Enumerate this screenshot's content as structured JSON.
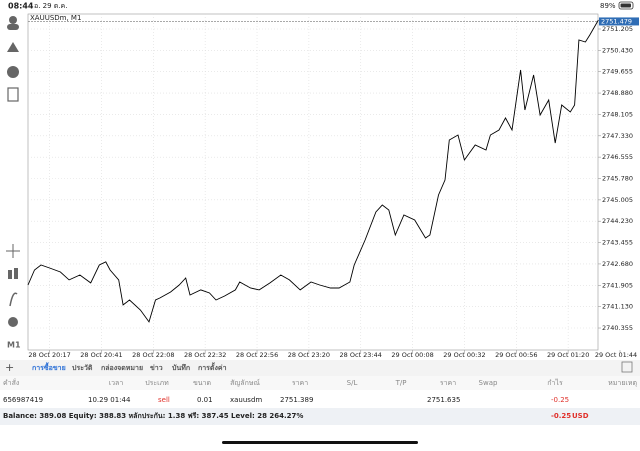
{
  "status_bar": {
    "time": "08:44",
    "date": "อ. 29 ต.ค.",
    "battery": "89%"
  },
  "toolbar": {
    "timeframe": "M1"
  },
  "chart_data": {
    "type": "line",
    "title": "XAUUSDm, M1",
    "x": [
      0,
      3,
      6,
      10,
      15,
      19,
      24,
      29,
      33,
      36,
      38,
      42,
      44,
      47,
      52,
      56,
      59,
      61,
      66,
      70,
      73,
      75,
      80,
      84,
      87,
      91,
      96,
      98,
      103,
      107,
      112,
      117,
      121,
      126,
      131,
      135,
      140,
      144,
      149,
      151,
      156,
      161,
      164,
      167,
      170,
      174,
      179,
      184,
      186,
      190,
      193,
      195,
      199,
      202,
      207,
      212,
      214,
      218,
      221,
      224,
      228,
      230,
      234,
      237,
      241,
      244,
      247,
      251,
      253,
      255,
      258,
      260,
      264
    ],
    "series": [
      {
        "name": "XAUUSDm",
        "color": "#000000",
        "values": [
          2741.917,
          2742.461,
          2742.643,
          2742.534,
          2742.389,
          2742.099,
          2742.28,
          2741.99,
          2742.643,
          2742.752,
          2742.461,
          2742.099,
          2741.192,
          2741.373,
          2741.01,
          2740.575,
          2741.373,
          2741.445,
          2741.663,
          2741.917,
          2742.171,
          2741.554,
          2741.736,
          2741.627,
          2741.373,
          2741.518,
          2741.736,
          2742.026,
          2741.808,
          2741.736,
          2741.99,
          2742.28,
          2742.099,
          2741.736,
          2742.026,
          2741.917,
          2741.808,
          2741.808,
          2742.026,
          2742.643,
          2743.55,
          2744.566,
          2744.82,
          2744.638,
          2743.731,
          2744.457,
          2744.275,
          2743.622,
          2743.731,
          2745.182,
          2745.727,
          2747.178,
          2747.359,
          2746.452,
          2746.996,
          2746.815,
          2747.359,
          2747.541,
          2747.976,
          2747.541,
          2749.717,
          2748.266,
          2749.536,
          2748.085,
          2748.629,
          2747.069,
          2748.448,
          2748.194,
          2748.448,
          2750.806,
          2750.733,
          2750.987,
          2751.531
        ]
      }
    ],
    "current_price": 2751.479,
    "xlim": [
      0,
      274
    ],
    "xticks": [
      {
        "value": 10,
        "label": "28 Oct 20:17"
      },
      {
        "value": 34,
        "label": "28 Oct 20:41"
      },
      {
        "value": 58,
        "label": "28 Oct 22:08"
      },
      {
        "value": 82,
        "label": "28 Oct 22:32"
      },
      {
        "value": 106,
        "label": "28 Oct 22:56"
      },
      {
        "value": 130,
        "label": "28 Oct 23:20"
      },
      {
        "value": 154,
        "label": "28 Oct 23:44"
      },
      {
        "value": 178,
        "label": "29 Oct 00:08"
      },
      {
        "value": 202,
        "label": "29 Oct 00:32"
      },
      {
        "value": 226,
        "label": "29 Oct 00:56"
      },
      {
        "value": 250,
        "label": "29 Oct 01:20"
      },
      {
        "value": 274,
        "label": "29 Oct 01:44"
      }
    ],
    "ylim": [
      2739.557,
      2751.749
    ],
    "yticks": [
      2751.205,
      {
        "value": 2750.43,
        "label": "2750.430"
      },
      2749.655,
      {
        "value": 2748.88,
        "label": "2748.880"
      },
      2748.105,
      {
        "value": 2747.33,
        "label": "2747.330"
      },
      2746.555,
      {
        "value": 2745.78,
        "label": "2745.780"
      },
      2745.005,
      {
        "value": 2744.23,
        "label": "2744.230"
      },
      2743.455,
      {
        "value": 2742.68,
        "label": "2742.680"
      },
      2741.905,
      {
        "value": 2741.13,
        "label": "2741.130"
      },
      2740.355
    ],
    "grid": true
  },
  "tabs": [
    "การซื้อขาย",
    "ประวัติ",
    "กล่องจดหมาย",
    "ข่าว",
    "บันทึก",
    "การตั้งค่า"
  ],
  "table": {
    "headers": [
      "คำสั่ง",
      "เวลา",
      "ประเภท",
      "ขนาด",
      "สัญลักษณ์",
      "ราคา",
      "S/L",
      "T/P",
      "ราคา",
      "Swap",
      "กำไร",
      "หมายเหตุ"
    ],
    "row": {
      "order": 656987419,
      "time": "10.29 01:44",
      "type": "sell",
      "volume": 0.01,
      "symbol": "xauusdm",
      "open_price": 2751.389,
      "price": 2751.635,
      "profit": -0.25
    }
  },
  "summary": {
    "balance_label": "Balance:",
    "balance": 389.08,
    "equity_label": "Equity:",
    "equity": 388.83,
    "margin_label": "หลักประกัน:",
    "margin": 1.38,
    "free_label": "ฟรี:",
    "free": 387.45,
    "level_label": "Level:",
    "level": "28 264.27%",
    "profit": -0.25,
    "currency": "USD"
  }
}
